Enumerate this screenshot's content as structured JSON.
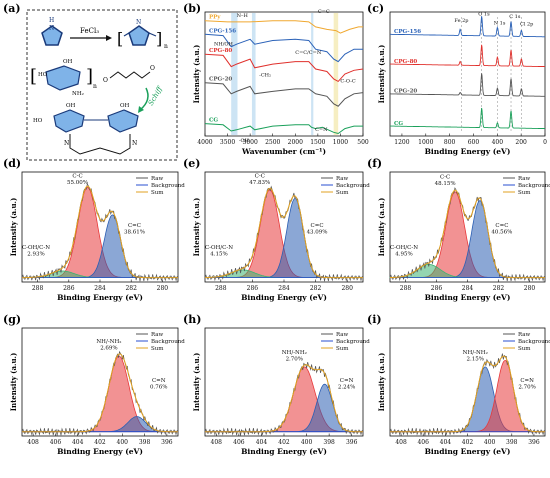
{
  "panels": [
    {
      "letter": "(a)"
    },
    {
      "letter": "(b)"
    },
    {
      "letter": "(c)"
    },
    {
      "letter": "(d)"
    },
    {
      "letter": "(e)"
    },
    {
      "letter": "(f)"
    },
    {
      "letter": "(g)"
    },
    {
      "letter": "(h)"
    },
    {
      "letter": "(i)"
    }
  ],
  "scheme": {
    "reagent": "FeCl₃",
    "atom_n_top": "N",
    "atom_h_top": "H",
    "sub_n": "n",
    "subscript_n2": "n",
    "oh": "OH",
    "nh2": "NH₂",
    "ho": "HO",
    "o": "O",
    "schiff": "Schiff",
    "n_left": "N",
    "n_right": "N"
  },
  "legend_labels": [
    "Raw",
    "Background",
    "Sum"
  ],
  "chart_data": [
    {
      "id": "b",
      "type": "line",
      "title": "",
      "xlabel": "Wavenumber (cm⁻¹)",
      "ylabel": "Intensity (a.u.)",
      "xlim": [
        4000,
        500
      ],
      "xreversed": true,
      "xticks": [
        "4000",
        "3500",
        "3000",
        "2500",
        "2000",
        "1500",
        "1000",
        "500"
      ],
      "series": [
        {
          "name": "PPy",
          "color": "#f0a830",
          "baseline": 0.93,
          "x": [
            4000,
            3500,
            3000,
            2500,
            2000,
            1700,
            1550,
            1300,
            1100,
            1000,
            800,
            600,
            500
          ],
          "y": [
            0.93,
            0.92,
            0.92,
            0.93,
            0.93,
            0.92,
            0.88,
            0.86,
            0.85,
            0.83,
            0.86,
            0.88,
            0.88
          ]
        },
        {
          "name": "CPG-156",
          "color": "#2b62b8",
          "x": [
            4000,
            3600,
            3420,
            3300,
            3000,
            2900,
            2500,
            2000,
            1700,
            1550,
            1300,
            1150,
            1050,
            900,
            700,
            500
          ],
          "y": [
            0.82,
            0.81,
            0.72,
            0.74,
            0.78,
            0.74,
            0.77,
            0.78,
            0.77,
            0.7,
            0.68,
            0.62,
            0.6,
            0.66,
            0.7,
            0.7
          ]
        },
        {
          "name": "CPG-80",
          "color": "#e0302c",
          "x": [
            4000,
            3600,
            3420,
            3300,
            3000,
            2900,
            2500,
            2000,
            1700,
            1550,
            1300,
            1150,
            1050,
            900,
            700,
            500
          ],
          "y": [
            0.66,
            0.65,
            0.56,
            0.58,
            0.62,
            0.55,
            0.58,
            0.6,
            0.6,
            0.54,
            0.52,
            0.46,
            0.44,
            0.5,
            0.53,
            0.54
          ]
        },
        {
          "name": "CPG-20",
          "color": "#555555",
          "x": [
            4000,
            3600,
            3420,
            3300,
            3000,
            2900,
            2500,
            2000,
            1700,
            1550,
            1300,
            1150,
            1050,
            900,
            700,
            500
          ],
          "y": [
            0.43,
            0.42,
            0.34,
            0.36,
            0.4,
            0.34,
            0.36,
            0.38,
            0.38,
            0.34,
            0.32,
            0.26,
            0.24,
            0.3,
            0.34,
            0.35
          ]
        },
        {
          "name": "CG",
          "color": "#1aa05a",
          "x": [
            4000,
            3600,
            3420,
            3300,
            3000,
            2900,
            2500,
            2000,
            1700,
            1640,
            1550,
            1400,
            1150,
            1050,
            900,
            700,
            500
          ],
          "y": [
            0.1,
            0.09,
            0.04,
            0.05,
            0.08,
            0.05,
            0.08,
            0.09,
            0.09,
            0.07,
            0.06,
            0.07,
            0.03,
            0.02,
            0.06,
            0.08,
            0.08
          ]
        }
      ],
      "annotations": [
        "N–H",
        "C=C",
        "NH/OH",
        "C=C/C=N",
        "-CH₂",
        "C-O-C",
        "C=N",
        "-OH"
      ]
    },
    {
      "id": "c",
      "type": "line",
      "title": "",
      "xlabel": "Binding Energy (eV)",
      "ylabel": "Intensity (a.u.)",
      "xlim": [
        1300,
        0
      ],
      "xreversed": true,
      "xticks": [
        "1200",
        "1000",
        "800",
        "600",
        "400",
        "200",
        "0"
      ],
      "series": [
        {
          "name": "CPG-156",
          "color": "#2b62b8",
          "base": 0.8,
          "peaks": [
            [
              711,
              0.05
            ],
            [
              531,
              0.16
            ],
            [
              399,
              0.07
            ],
            [
              285,
              0.12
            ],
            [
              198,
              0.05
            ]
          ]
        },
        {
          "name": "CPG-80",
          "color": "#e0302c",
          "base": 0.56,
          "peaks": [
            [
              711,
              0.03
            ],
            [
              531,
              0.17
            ],
            [
              399,
              0.07
            ],
            [
              285,
              0.13
            ],
            [
              198,
              0.06
            ]
          ]
        },
        {
          "name": "CPG-20",
          "color": "#555555",
          "base": 0.32,
          "peaks": [
            [
              711,
              0.02
            ],
            [
              531,
              0.18
            ],
            [
              399,
              0.06
            ],
            [
              285,
              0.14
            ],
            [
              198,
              0.06
            ]
          ]
        },
        {
          "name": "CG",
          "color": "#1aa05a",
          "base": 0.06,
          "peaks": [
            [
              531,
              0.16
            ],
            [
              399,
              0.04
            ],
            [
              285,
              0.14
            ]
          ]
        }
      ],
      "annotations": [
        "Fe 2p",
        "O 1s",
        "N 1s",
        "C 1s",
        "Cl 2p"
      ]
    },
    {
      "id": "d",
      "type": "area",
      "xlabel": "Binding Energy (eV)",
      "ylabel": "Intensity (a.u.)",
      "xlim": [
        289,
        279
      ],
      "xticks": [
        "288",
        "286",
        "284",
        "282",
        "280"
      ],
      "components": [
        {
          "name": "C-C",
          "center": 284.8,
          "amp": 0.82,
          "sigma": 0.62,
          "color": "#e8393a",
          "label": "C-C\n55.00%"
        },
        {
          "name": "C=C",
          "center": 283.2,
          "amp": 0.57,
          "sigma": 0.52,
          "color": "#2c5fb3",
          "label": "C=C\n38.61%"
        },
        {
          "name": "C-OH/C-N",
          "center": 286.4,
          "amp": 0.06,
          "sigma": 0.75,
          "color": "#3cb371",
          "label": "C-OH/C-N\n2.93%"
        }
      ]
    },
    {
      "id": "e",
      "type": "area",
      "xlabel": "Binding Energy (eV)",
      "ylabel": "Intensity (a.u.)",
      "xlim": [
        289,
        279
      ],
      "xticks": [
        "288",
        "286",
        "284",
        "282",
        "280"
      ],
      "components": [
        {
          "name": "C-C",
          "center": 284.9,
          "amp": 0.8,
          "sigma": 0.6,
          "color": "#e8393a",
          "label": "C-C\n47.83%"
        },
        {
          "name": "C=C",
          "center": 283.3,
          "amp": 0.72,
          "sigma": 0.52,
          "color": "#2c5fb3",
          "label": "C=C\n43.09%"
        },
        {
          "name": "C-OH/C-N",
          "center": 286.6,
          "amp": 0.07,
          "sigma": 0.75,
          "color": "#3cb371",
          "label": "C-OH/C-N\n4.15%"
        }
      ]
    },
    {
      "id": "f",
      "type": "area",
      "xlabel": "Binding Energy (eV)",
      "ylabel": "Intensity (a.u.)",
      "xlim": [
        289,
        279
      ],
      "xticks": [
        "288",
        "286",
        "284",
        "282",
        "280"
      ],
      "components": [
        {
          "name": "C-C",
          "center": 284.8,
          "amp": 0.78,
          "sigma": 0.6,
          "color": "#e8393a",
          "label": "C-C\n48.15%"
        },
        {
          "name": "C=C",
          "center": 283.2,
          "amp": 0.7,
          "sigma": 0.52,
          "color": "#2c5fb3",
          "label": "C=C\n40.56%"
        },
        {
          "name": "C-OH/C-N",
          "center": 286.5,
          "amp": 0.12,
          "sigma": 0.75,
          "color": "#3cb371",
          "label": "C-OH/C-N\n4.95%"
        }
      ]
    },
    {
      "id": "g",
      "type": "area",
      "xlabel": "Binding Energy (eV)",
      "ylabel": "Intensity (a.u.)",
      "xlim": [
        409,
        395
      ],
      "xticks": [
        "408",
        "406",
        "404",
        "402",
        "400",
        "398",
        "396"
      ],
      "components": [
        {
          "name": "NH/-NH2",
          "center": 400.3,
          "amp": 0.7,
          "sigma": 0.9,
          "color": "#e8393a",
          "label": "NH/-NH₂\n2.69%"
        },
        {
          "name": "C=N",
          "center": 398.7,
          "amp": 0.14,
          "sigma": 0.8,
          "color": "#2c5fb3",
          "label": "C=N\n0.76%"
        }
      ]
    },
    {
      "id": "h",
      "type": "area",
      "xlabel": "Binding Energy (eV)",
      "ylabel": "Intensity (a.u.)",
      "xlim": [
        409,
        395
      ],
      "xticks": [
        "408",
        "406",
        "404",
        "402",
        "400",
        "398",
        "396"
      ],
      "components": [
        {
          "name": "NH/-NH2",
          "center": 400.2,
          "amp": 0.6,
          "sigma": 0.95,
          "color": "#e8393a",
          "label": "NH/-NH₂\n2.70%"
        },
        {
          "name": "C=N",
          "center": 398.4,
          "amp": 0.44,
          "sigma": 0.7,
          "color": "#2c5fb3",
          "label": "C=N\n2.24%"
        }
      ]
    },
    {
      "id": "i",
      "type": "area",
      "xlabel": "Binding Energy (eV)",
      "ylabel": "Intensity (a.u.)",
      "xlim": [
        409,
        395
      ],
      "xticks": [
        "408",
        "406",
        "404",
        "402",
        "400",
        "398",
        "396"
      ],
      "components": [
        {
          "name": "NH/-NH2",
          "center": 400.4,
          "amp": 0.6,
          "sigma": 0.75,
          "color": "#2c5fb3",
          "label": "NH/-NH₂\n2.15%"
        },
        {
          "name": "C=N",
          "center": 398.6,
          "amp": 0.66,
          "sigma": 0.75,
          "color": "#e8393a",
          "label": "C=N\n2.70%"
        }
      ]
    }
  ]
}
